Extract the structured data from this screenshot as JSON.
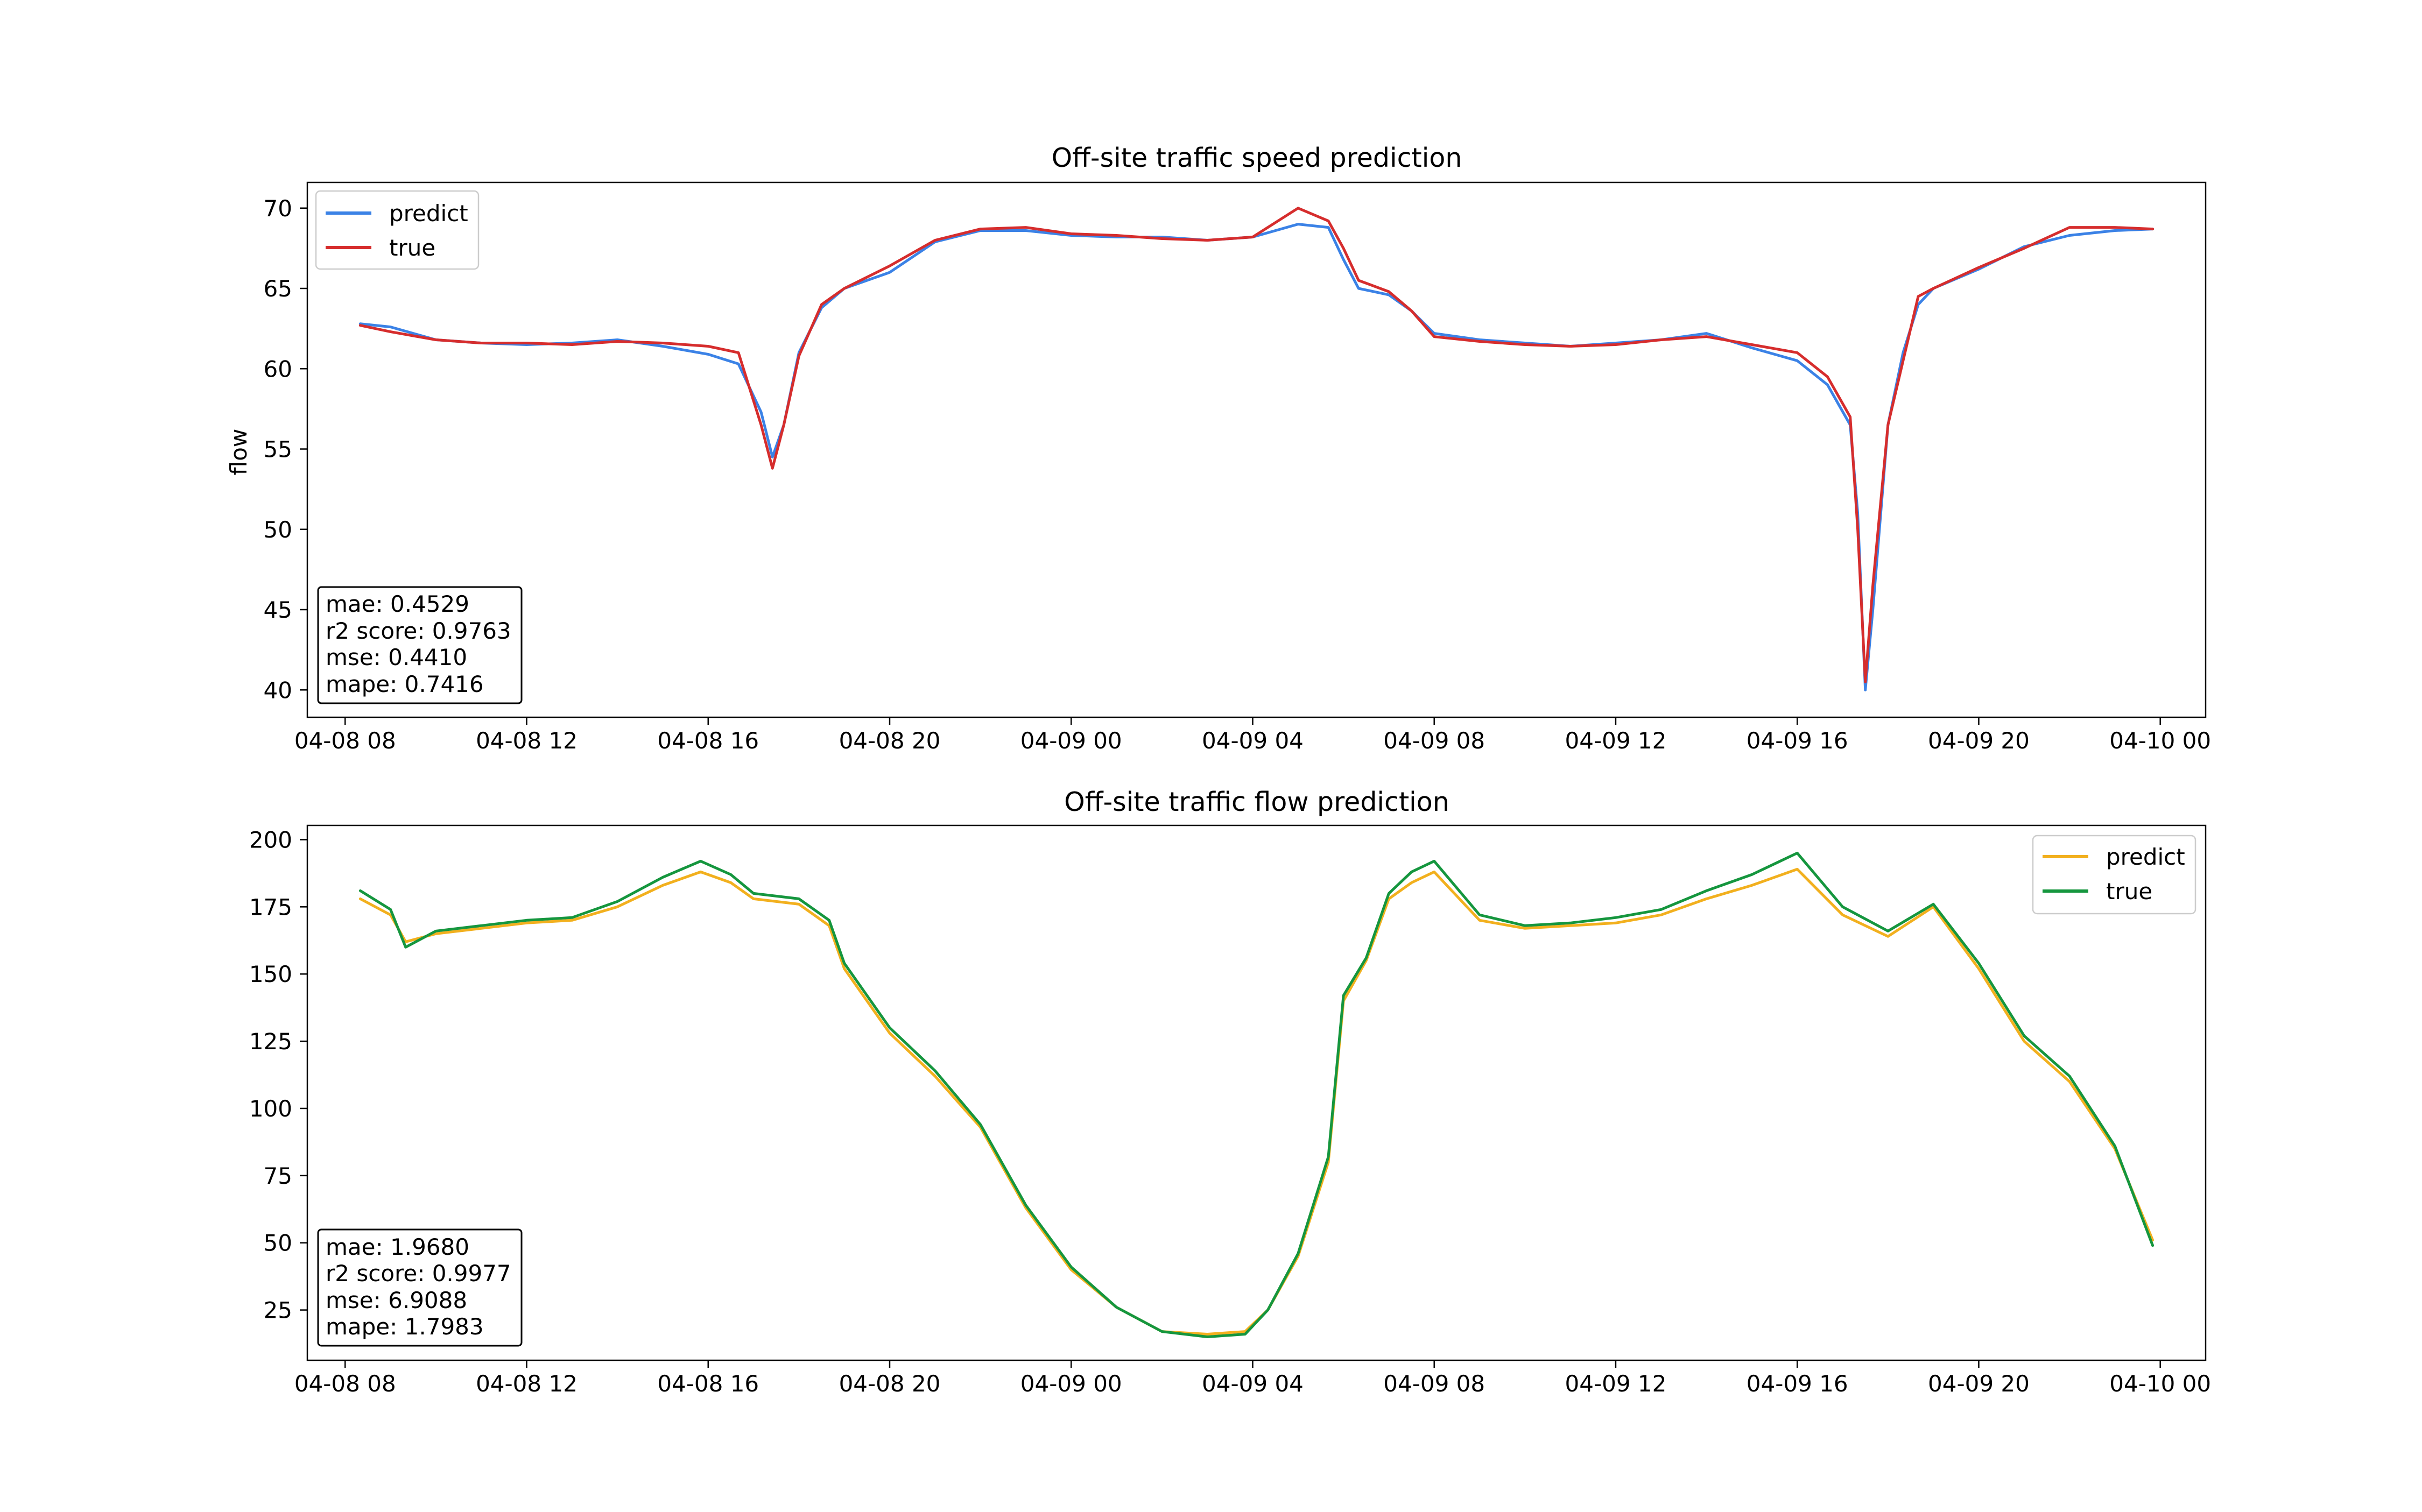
{
  "chart_data": [
    {
      "type": "line",
      "title": "Off-site traffic speed prediction",
      "xlabel": "",
      "ylabel": "flow",
      "x_range": [
        "04-08 07:10",
        "04-10 01:00"
      ],
      "ylim": [
        38.3,
        71.6
      ],
      "grid": false,
      "legend_position": "upper left",
      "x_ticks": [
        "04-08 08",
        "04-08 12",
        "04-08 16",
        "04-08 20",
        "04-09 00",
        "04-09 04",
        "04-09 08",
        "04-09 12",
        "04-09 16",
        "04-09 20",
        "04-10 00"
      ],
      "y_ticks": [
        40,
        45,
        50,
        55,
        60,
        65,
        70
      ],
      "x": [
        "04-08 08:20",
        "04-08 09:00",
        "04-08 10:00",
        "04-08 11:00",
        "04-08 12:00",
        "04-08 13:00",
        "04-08 14:00",
        "04-08 15:00",
        "04-08 16:00",
        "04-08 16:40",
        "04-08 17:10",
        "04-08 17:25",
        "04-08 17:40",
        "04-08 18:00",
        "04-08 18:30",
        "04-08 19:00",
        "04-08 20:00",
        "04-08 21:00",
        "04-08 22:00",
        "04-08 23:00",
        "04-09 00:00",
        "04-09 01:00",
        "04-09 02:00",
        "04-09 03:00",
        "04-09 04:00",
        "04-09 05:00",
        "04-09 05:40",
        "04-09 06:00",
        "04-09 06:20",
        "04-09 07:00",
        "04-09 07:30",
        "04-09 08:00",
        "04-09 09:00",
        "04-09 10:00",
        "04-09 11:00",
        "04-09 12:00",
        "04-09 13:00",
        "04-09 14:00",
        "04-09 15:00",
        "04-09 16:00",
        "04-09 16:40",
        "04-09 17:10",
        "04-09 17:20",
        "04-09 17:30",
        "04-09 17:40",
        "04-09 18:00",
        "04-09 18:20",
        "04-09 18:40",
        "04-09 19:00",
        "04-09 20:00",
        "04-09 21:00",
        "04-09 22:00",
        "04-09 23:00",
        "04-09 23:50"
      ],
      "series": [
        {
          "name": "predict",
          "color": "#3b82e6",
          "values": [
            62.8,
            62.6,
            61.8,
            61.6,
            61.5,
            61.6,
            61.8,
            61.4,
            60.9,
            60.3,
            57.3,
            54.5,
            56.5,
            61.0,
            63.8,
            65.0,
            66.0,
            67.9,
            68.6,
            68.6,
            68.3,
            68.2,
            68.2,
            68.0,
            68.2,
            69.0,
            68.8,
            66.8,
            65.0,
            64.6,
            63.6,
            62.2,
            61.8,
            61.6,
            61.4,
            61.6,
            61.8,
            62.2,
            61.3,
            60.5,
            59.0,
            56.5,
            51.0,
            40.0,
            45.0,
            56.5,
            61.0,
            64.0,
            65.0,
            66.2,
            67.6,
            68.3,
            68.6,
            68.7
          ]
        },
        {
          "name": "true",
          "color": "#d62d2d",
          "values": [
            62.7,
            62.3,
            61.8,
            61.6,
            61.6,
            61.5,
            61.7,
            61.6,
            61.4,
            61.0,
            56.5,
            53.8,
            56.5,
            60.8,
            64.0,
            65.0,
            66.4,
            68.0,
            68.7,
            68.8,
            68.4,
            68.3,
            68.1,
            68.0,
            68.2,
            70.0,
            69.2,
            67.5,
            65.5,
            64.8,
            63.6,
            62.0,
            61.7,
            61.5,
            61.4,
            61.5,
            61.8,
            62.0,
            61.5,
            61.0,
            59.5,
            57.0,
            50.0,
            40.5,
            46.5,
            56.5,
            60.5,
            64.5,
            65.0,
            66.3,
            67.5,
            68.8,
            68.8,
            68.7
          ]
        }
      ],
      "annotation": [
        "mae: 0.4529",
        "r2 score: 0.9763",
        "mse: 0.4410",
        "mape: 0.7416"
      ]
    },
    {
      "type": "line",
      "title": "Off-site traffic flow prediction",
      "xlabel": "",
      "ylabel": "",
      "x_range": [
        "04-08 07:10",
        "04-10 01:00"
      ],
      "ylim": [
        6.3,
        205.3
      ],
      "grid": false,
      "legend_position": "upper right",
      "x_ticks": [
        "04-08 08",
        "04-08 12",
        "04-08 16",
        "04-08 20",
        "04-09 00",
        "04-09 04",
        "04-09 08",
        "04-09 12",
        "04-09 16",
        "04-09 20",
        "04-10 00"
      ],
      "y_ticks": [
        25,
        50,
        75,
        100,
        125,
        150,
        175,
        200
      ],
      "x": [
        "04-08 08:20",
        "04-08 09:00",
        "04-08 09:20",
        "04-08 10:00",
        "04-08 11:00",
        "04-08 12:00",
        "04-08 13:00",
        "04-08 14:00",
        "04-08 15:00",
        "04-08 15:50",
        "04-08 16:30",
        "04-08 17:00",
        "04-08 18:00",
        "04-08 18:40",
        "04-08 19:00",
        "04-08 20:00",
        "04-08 21:00",
        "04-08 22:00",
        "04-08 23:00",
        "04-09 00:00",
        "04-09 01:00",
        "04-09 02:00",
        "04-09 03:00",
        "04-09 03:50",
        "04-09 04:20",
        "04-09 05:00",
        "04-09 05:40",
        "04-09 06:00",
        "04-09 06:30",
        "04-09 07:00",
        "04-09 07:30",
        "04-09 08:00",
        "04-09 09:00",
        "04-09 10:00",
        "04-09 11:00",
        "04-09 12:00",
        "04-09 13:00",
        "04-09 14:00",
        "04-09 15:00",
        "04-09 16:00",
        "04-09 17:00",
        "04-09 18:00",
        "04-09 19:00",
        "04-09 20:00",
        "04-09 21:00",
        "04-09 22:00",
        "04-09 23:00",
        "04-09 23:50"
      ],
      "series": [
        {
          "name": "predict",
          "color": "#f2b01e",
          "values": [
            178,
            172,
            162,
            165,
            167,
            169,
            170,
            175,
            183,
            188,
            184,
            178,
            176,
            168,
            152,
            128,
            112,
            93,
            63,
            40,
            26,
            17,
            16,
            17,
            25,
            45,
            80,
            140,
            155,
            178,
            184,
            188,
            170,
            167,
            168,
            169,
            172,
            178,
            183,
            189,
            172,
            164,
            175,
            152,
            125,
            110,
            85,
            51
          ]
        },
        {
          "name": "true",
          "color": "#15963e",
          "values": [
            181,
            174,
            160,
            166,
            168,
            170,
            171,
            177,
            186,
            192,
            187,
            180,
            178,
            170,
            154,
            130,
            114,
            94,
            64,
            41,
            26,
            17,
            15,
            16,
            25,
            46,
            82,
            142,
            156,
            180,
            188,
            192,
            172,
            168,
            169,
            171,
            174,
            181,
            187,
            195,
            175,
            166,
            176,
            154,
            127,
            112,
            86,
            49
          ]
        }
      ],
      "annotation": [
        "mae: 1.9680",
        "r2 score: 0.9977",
        "mse: 6.9088",
        "mape: 1.7983"
      ]
    }
  ]
}
